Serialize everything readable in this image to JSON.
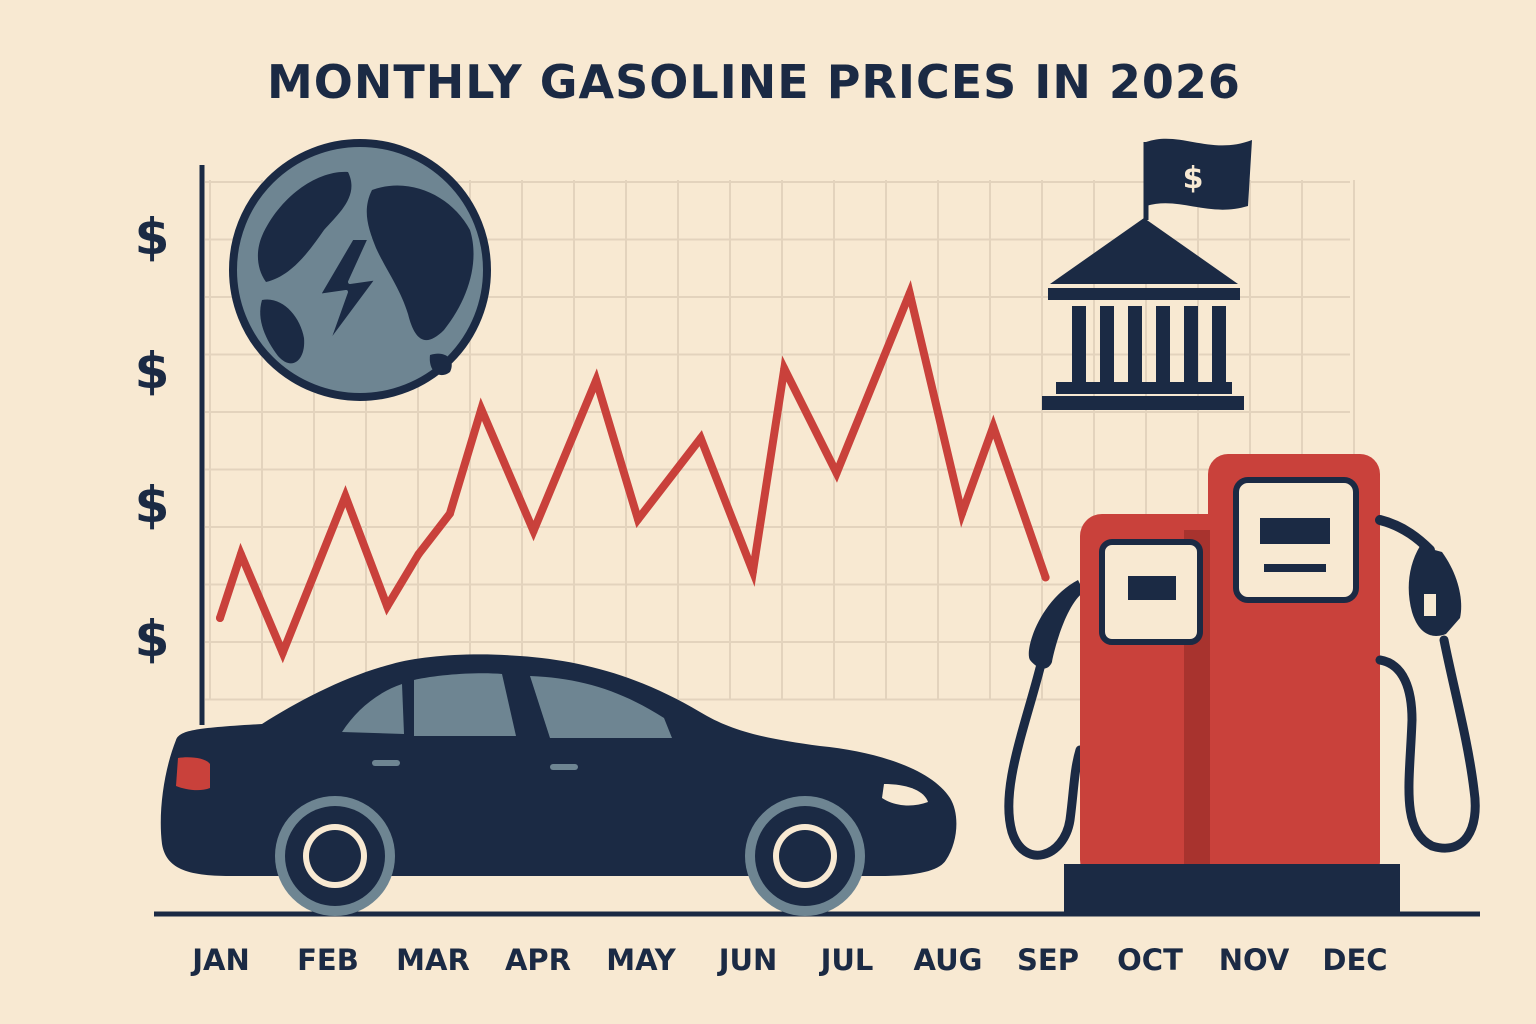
{
  "chart_data": {
    "type": "line",
    "title": "MONTHLY GASOLINE PRICES IN 2026",
    "xlabel": "",
    "ylabel": "",
    "categories": [
      "JAN",
      "FEB",
      "MAR",
      "APR",
      "MAY",
      "JUN",
      "JUL",
      "AUG",
      "SEP",
      "OCT",
      "NOV",
      "DEC"
    ],
    "y_tick_labels": [
      "$",
      "$",
      "$",
      "$"
    ],
    "series": [
      {
        "color": "#c9413b",
        "points": [
          {
            "x": 0.0,
            "y": 1.5
          },
          {
            "x": 0.2,
            "y": 2.6
          },
          {
            "x": 0.6,
            "y": 0.9
          },
          {
            "x": 1.2,
            "y": 3.6
          },
          {
            "x": 1.6,
            "y": 1.7
          },
          {
            "x": 1.9,
            "y": 2.6
          },
          {
            "x": 2.2,
            "y": 3.3
          },
          {
            "x": 2.5,
            "y": 5.1
          },
          {
            "x": 3.0,
            "y": 3.0
          },
          {
            "x": 3.6,
            "y": 5.6
          },
          {
            "x": 4.0,
            "y": 3.2
          },
          {
            "x": 4.6,
            "y": 4.6
          },
          {
            "x": 5.1,
            "y": 2.3
          },
          {
            "x": 5.4,
            "y": 5.8
          },
          {
            "x": 5.9,
            "y": 4.0
          },
          {
            "x": 6.6,
            "y": 7.1
          },
          {
            "x": 7.1,
            "y": 3.3
          },
          {
            "x": 7.4,
            "y": 4.8
          },
          {
            "x": 7.9,
            "y": 2.2
          }
        ]
      }
    ],
    "ylim": [
      0,
      8
    ],
    "grid": true,
    "legend": "none"
  },
  "illustrations": {
    "globe_icon": "globe-with-lightning-icon",
    "bank_icon": "bank-with-dollar-flag-icon",
    "flag_symbol": "$",
    "car_icon": "sedan-car-icon",
    "pump_icon": "gas-pump-icon"
  },
  "colors": {
    "background": "#f8e9d2",
    "grid": "#e3d3bd",
    "ink": "#1b2a44",
    "accent": "#c9413b",
    "slate": "#6e8592"
  }
}
